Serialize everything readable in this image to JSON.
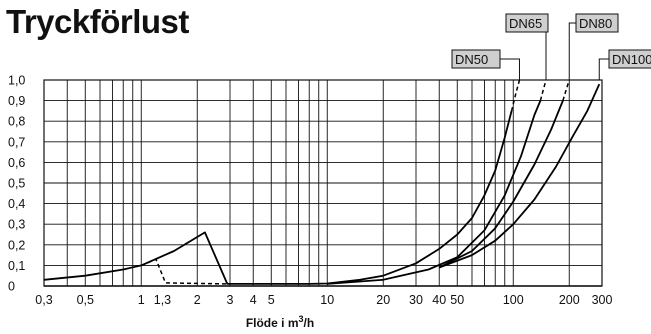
{
  "chart_data": {
    "type": "line",
    "title": "Tryckförlust",
    "xlabel": "Flöde i m³/h",
    "ylabel": "",
    "x_scale": "log",
    "xlim": [
      0.3,
      300
    ],
    "ylim": [
      0,
      1.0
    ],
    "grid": true,
    "x_ticks": [
      {
        "v": 0.3,
        "label": "0,3"
      },
      {
        "v": 0.5,
        "label": "0,5"
      },
      {
        "v": 1,
        "label": "1"
      },
      {
        "v": 1.3,
        "label": "1,3"
      },
      {
        "v": 2,
        "label": "2"
      },
      {
        "v": 3,
        "label": "3"
      },
      {
        "v": 4,
        "label": "4"
      },
      {
        "v": 5,
        "label": "5"
      },
      {
        "v": 10,
        "label": "10"
      },
      {
        "v": 20,
        "label": "20"
      },
      {
        "v": 30,
        "label": "30"
      },
      {
        "v": 40,
        "label": "40"
      },
      {
        "v": 50,
        "label": "50"
      },
      {
        "v": 100,
        "label": "100"
      },
      {
        "v": 200,
        "label": "200"
      },
      {
        "v": 300,
        "label": "300"
      }
    ],
    "y_ticks": [
      {
        "v": 0,
        "label": "0"
      },
      {
        "v": 0.1,
        "label": "0,1"
      },
      {
        "v": 0.2,
        "label": "0,2"
      },
      {
        "v": 0.3,
        "label": "0,3"
      },
      {
        "v": 0.4,
        "label": "0,4"
      },
      {
        "v": 0.5,
        "label": "0,5"
      },
      {
        "v": 0.6,
        "label": "0,6"
      },
      {
        "v": 0.7,
        "label": "0,7"
      },
      {
        "v": 0.8,
        "label": "0,8"
      },
      {
        "v": 0.9,
        "label": "0,9"
      },
      {
        "v": 1.0,
        "label": "1,0"
      }
    ],
    "x_gridlines": [
      0.3,
      0.4,
      0.5,
      0.6,
      0.7,
      0.8,
      0.9,
      1,
      2,
      3,
      4,
      5,
      6,
      7,
      8,
      9,
      10,
      20,
      30,
      40,
      50,
      60,
      70,
      80,
      90,
      100,
      200,
      300
    ],
    "series": [
      {
        "name": "DN50",
        "style": "solid",
        "points": [
          [
            0.3,
            0.03
          ],
          [
            0.5,
            0.05
          ],
          [
            0.8,
            0.08
          ],
          [
            1.0,
            0.1
          ],
          [
            1.5,
            0.17
          ],
          [
            2.2,
            0.26
          ],
          [
            2.9,
            0.01
          ],
          [
            5,
            0.01
          ],
          [
            8,
            0.01
          ],
          [
            10,
            0.012
          ],
          [
            15,
            0.03
          ],
          [
            20,
            0.05
          ],
          [
            30,
            0.11
          ],
          [
            40,
            0.18
          ],
          [
            50,
            0.25
          ],
          [
            60,
            0.33
          ],
          [
            70,
            0.44
          ],
          [
            80,
            0.56
          ],
          [
            90,
            0.72
          ],
          [
            98,
            0.85
          ]
        ]
      },
      {
        "name": "DN50",
        "style": "dashed",
        "points": [
          [
            98,
            0.85
          ],
          [
            103,
            0.93
          ],
          [
            108,
            1.0
          ]
        ]
      },
      {
        "name": "DN50",
        "style": "dashed",
        "points": [
          [
            1.0,
            0.1
          ],
          [
            1.2,
            0.13
          ],
          [
            1.35,
            0.015
          ],
          [
            2.9,
            0.01
          ]
        ]
      },
      {
        "name": "DN65",
        "style": "solid",
        "points": [
          [
            10,
            0.01
          ],
          [
            20,
            0.03
          ],
          [
            35,
            0.08
          ],
          [
            50,
            0.14
          ],
          [
            70,
            0.27
          ],
          [
            90,
            0.44
          ],
          [
            110,
            0.63
          ],
          [
            130,
            0.83
          ],
          [
            140,
            0.9
          ]
        ]
      },
      {
        "name": "DN65",
        "style": "dashed",
        "points": [
          [
            140,
            0.9
          ],
          [
            150,
            1.0
          ]
        ]
      },
      {
        "name": "DN80",
        "style": "solid",
        "points": [
          [
            40,
            0.09
          ],
          [
            60,
            0.17
          ],
          [
            80,
            0.28
          ],
          [
            100,
            0.41
          ],
          [
            130,
            0.59
          ],
          [
            160,
            0.76
          ],
          [
            185,
            0.9
          ]
        ]
      },
      {
        "name": "DN80",
        "style": "dashed",
        "points": [
          [
            185,
            0.9
          ],
          [
            200,
            1.0
          ]
        ]
      },
      {
        "name": "DN100",
        "style": "solid",
        "points": [
          [
            40,
            0.09
          ],
          [
            60,
            0.15
          ],
          [
            80,
            0.22
          ],
          [
            100,
            0.3
          ],
          [
            130,
            0.42
          ],
          [
            170,
            0.58
          ],
          [
            210,
            0.73
          ],
          [
            250,
            0.85
          ],
          [
            290,
            0.98
          ]
        ]
      }
    ],
    "legend": [
      {
        "label": "DN65",
        "anchor_x": 150
      },
      {
        "label": "DN80",
        "anchor_x": 200
      },
      {
        "label": "DN50",
        "anchor_x": 108
      },
      {
        "label": "DN100",
        "anchor_x": 290
      }
    ]
  }
}
